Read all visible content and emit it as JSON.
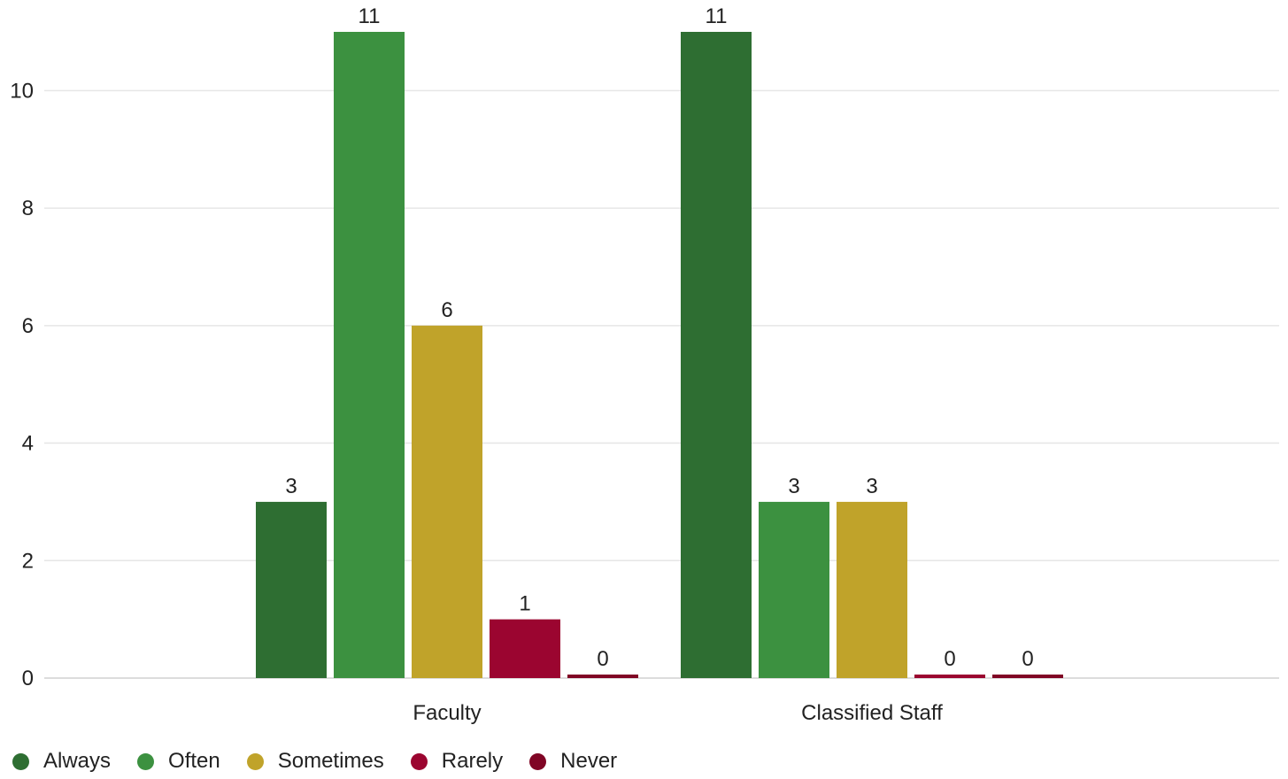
{
  "chart_data": {
    "type": "bar",
    "categories": [
      "Faculty",
      "Classified Staff"
    ],
    "series": [
      {
        "name": "Always",
        "values": [
          3,
          11
        ],
        "color": "#2e6e32"
      },
      {
        "name": "Often",
        "values": [
          11,
          3
        ],
        "color": "#3c9140"
      },
      {
        "name": "Sometimes",
        "values": [
          6,
          3
        ],
        "color": "#c0a32a"
      },
      {
        "name": "Rarely",
        "values": [
          1,
          0
        ],
        "color": "#9b0530"
      },
      {
        "name": "Never",
        "values": [
          0,
          0
        ],
        "color": "#800525"
      }
    ],
    "yticks": [
      "0",
      "2",
      "4",
      "6",
      "8",
      "10"
    ],
    "ylim": [
      0,
      11
    ],
    "grid": true,
    "legend_position": "bottom-left",
    "title": "",
    "xlabel": "",
    "ylabel": ""
  }
}
